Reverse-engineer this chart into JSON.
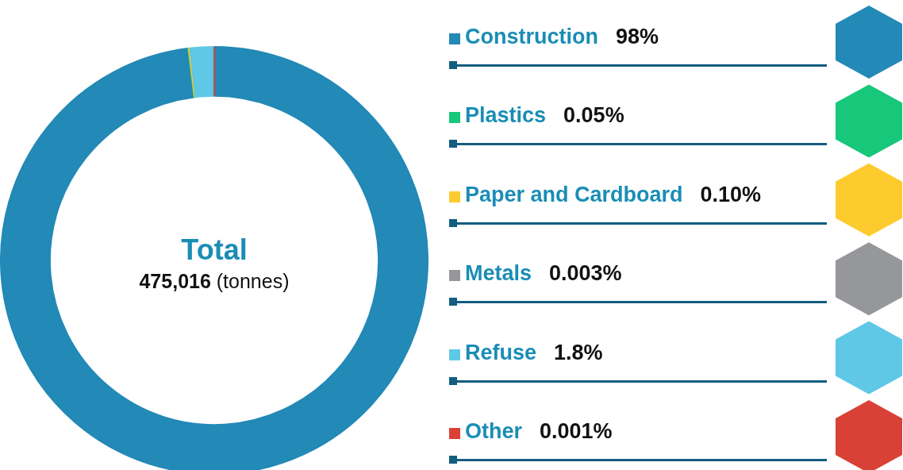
{
  "chart_data": {
    "type": "donut",
    "title": "Total",
    "subtitle": "475,016 (tonnes)",
    "categories": [
      "Construction",
      "Plastics",
      "Paper and Cardboard",
      "Metals",
      "Refuse",
      "Other"
    ],
    "values": [
      98,
      0.05,
      0.1,
      0.003,
      1.8,
      0.001
    ],
    "value_labels": [
      "98%",
      "0.05%",
      "0.10%",
      "0.003%",
      "1.8%",
      "0.001%"
    ],
    "colors": [
      "#2389b6",
      "#17c77a",
      "#fecb2f",
      "#96979b",
      "#5fc8e6",
      "#d94136"
    ],
    "legend": "right"
  }
}
